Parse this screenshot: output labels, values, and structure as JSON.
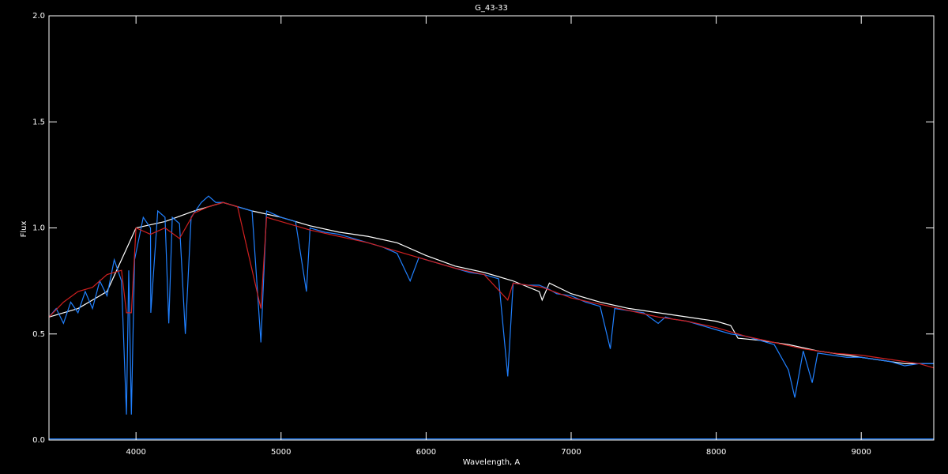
{
  "chart_data": {
    "type": "line",
    "title": "G_43-33",
    "x_label": "Wavelength, A",
    "y_label": "Flux",
    "xlim": [
      3400,
      9500
    ],
    "xticks": [
      4000,
      5000,
      6000,
      7000,
      8000,
      9000
    ],
    "ylim": [
      0,
      2
    ],
    "yticks": [
      {
        "value": 0,
        "label": "0.0"
      },
      0.5,
      {
        "value": 1,
        "label": "1.0"
      },
      1.5,
      {
        "value": 2,
        "label": "2.0"
      }
    ],
    "series": [
      {
        "color": "#ffffff",
        "x": [
          3400,
          3600,
          3800,
          4000,
          4200,
          4400,
          4600,
          4800,
          5000,
          5200,
          5400,
          5600,
          5800,
          6000,
          6200,
          6400,
          6600,
          6780,
          6800,
          6850,
          7000,
          7200,
          7400,
          7600,
          7800,
          8000,
          8100,
          8150,
          8300,
          8500,
          8700,
          8900,
          9100,
          9300,
          9500
        ],
        "values": [
          0.58,
          0.62,
          0.7,
          1.0,
          1.03,
          1.08,
          1.12,
          1.08,
          1.05,
          1.01,
          0.98,
          0.96,
          0.93,
          0.87,
          0.82,
          0.79,
          0.75,
          0.7,
          0.66,
          0.74,
          0.69,
          0.65,
          0.62,
          0.6,
          0.58,
          0.56,
          0.54,
          0.48,
          0.47,
          0.45,
          0.42,
          0.4,
          0.38,
          0.36,
          0.36
        ]
      },
      {
        "color": "#2080ff",
        "x": [
          3400,
          3450,
          3500,
          3550,
          3600,
          3650,
          3700,
          3750,
          3800,
          3850,
          3900,
          3934,
          3950,
          3968,
          3990,
          4050,
          4100,
          4102,
          4150,
          4200,
          4226,
          4250,
          4300,
          4340,
          4380,
          4450,
          4500,
          4550,
          4600,
          4700,
          4800,
          4861,
          4900,
          5000,
          5100,
          5175,
          5200,
          5300,
          5400,
          5500,
          5600,
          5700,
          5800,
          5890,
          5950,
          6000,
          6100,
          6200,
          6300,
          6400,
          6500,
          6563,
          6600,
          6700,
          6780,
          6850,
          6900,
          7000,
          7100,
          7200,
          7270,
          7300,
          7400,
          7500,
          7600,
          7650,
          7700,
          7800,
          7900,
          8000,
          8100,
          8200,
          8300,
          8400,
          8498,
          8542,
          8600,
          8662,
          8700,
          8800,
          8900,
          9000,
          9100,
          9200,
          9300,
          9400,
          9500
        ],
        "values": [
          0.58,
          0.62,
          0.55,
          0.65,
          0.6,
          0.7,
          0.62,
          0.75,
          0.68,
          0.85,
          0.75,
          0.12,
          0.8,
          0.12,
          0.85,
          1.05,
          1.0,
          0.6,
          1.08,
          1.05,
          0.55,
          1.05,
          1.02,
          0.5,
          1.05,
          1.12,
          1.15,
          1.12,
          1.12,
          1.1,
          1.08,
          0.46,
          1.08,
          1.05,
          1.03,
          0.7,
          1.0,
          0.98,
          0.97,
          0.95,
          0.93,
          0.91,
          0.88,
          0.75,
          0.86,
          0.85,
          0.83,
          0.81,
          0.79,
          0.78,
          0.76,
          0.3,
          0.74,
          0.73,
          0.73,
          0.71,
          0.69,
          0.68,
          0.65,
          0.63,
          0.43,
          0.62,
          0.61,
          0.6,
          0.55,
          0.58,
          0.57,
          0.56,
          0.54,
          0.52,
          0.5,
          0.49,
          0.47,
          0.45,
          0.33,
          0.2,
          0.42,
          0.27,
          0.41,
          0.4,
          0.39,
          0.39,
          0.38,
          0.37,
          0.35,
          0.36,
          0.36
        ]
      },
      {
        "color": "#d02020",
        "x": [
          3400,
          3500,
          3600,
          3700,
          3800,
          3900,
          3934,
          3968,
          4000,
          4100,
          4200,
          4300,
          4400,
          4500,
          4600,
          4700,
          4861,
          4900,
          5000,
          5200,
          5400,
          5600,
          5800,
          6000,
          6200,
          6400,
          6563,
          6600,
          6800,
          7000,
          7200,
          7400,
          7600,
          7800,
          8000,
          8200,
          8400,
          8600,
          8800,
          9000,
          9200,
          9400,
          9500
        ],
        "values": [
          0.58,
          0.65,
          0.7,
          0.72,
          0.78,
          0.8,
          0.6,
          0.6,
          1.0,
          0.97,
          1.0,
          0.95,
          1.07,
          1.1,
          1.12,
          1.1,
          0.62,
          1.05,
          1.03,
          0.99,
          0.96,
          0.93,
          0.89,
          0.85,
          0.81,
          0.78,
          0.66,
          0.74,
          0.72,
          0.67,
          0.64,
          0.61,
          0.58,
          0.56,
          0.53,
          0.49,
          0.46,
          0.43,
          0.41,
          0.4,
          0.38,
          0.36,
          0.34
        ]
      },
      {
        "color": "#2080ff",
        "x": [
          3400,
          9500
        ],
        "values": [
          0.005,
          0.005
        ]
      }
    ]
  }
}
